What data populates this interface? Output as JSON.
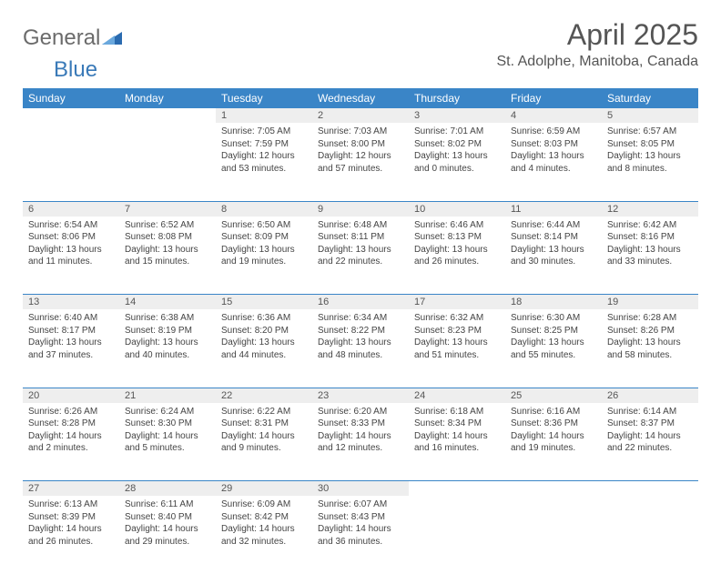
{
  "brand": {
    "part1": "General",
    "part2": "Blue"
  },
  "title": "April 2025",
  "location": "St. Adolphe, Manitoba, Canada",
  "colors": {
    "header_bg": "#3a85c7",
    "header_text": "#ffffff",
    "daynum_bg": "#eeeeee",
    "rule": "#3a85c7",
    "body_text": "#444444",
    "title_text": "#555555",
    "brand_gray": "#6b6b6b",
    "brand_blue": "#3a7ab8",
    "page_bg": "#ffffff"
  },
  "typography": {
    "title_fontsize": 32,
    "location_fontsize": 16,
    "header_fontsize": 12,
    "daynum_fontsize": 11,
    "cell_fontsize": 10,
    "logo_fontsize": 24
  },
  "weekdays": [
    "Sunday",
    "Monday",
    "Tuesday",
    "Wednesday",
    "Thursday",
    "Friday",
    "Saturday"
  ],
  "weeks": [
    [
      null,
      null,
      {
        "n": "1",
        "sr": "Sunrise: 7:05 AM",
        "ss": "Sunset: 7:59 PM",
        "dl": "Daylight: 12 hours and 53 minutes."
      },
      {
        "n": "2",
        "sr": "Sunrise: 7:03 AM",
        "ss": "Sunset: 8:00 PM",
        "dl": "Daylight: 12 hours and 57 minutes."
      },
      {
        "n": "3",
        "sr": "Sunrise: 7:01 AM",
        "ss": "Sunset: 8:02 PM",
        "dl": "Daylight: 13 hours and 0 minutes."
      },
      {
        "n": "4",
        "sr": "Sunrise: 6:59 AM",
        "ss": "Sunset: 8:03 PM",
        "dl": "Daylight: 13 hours and 4 minutes."
      },
      {
        "n": "5",
        "sr": "Sunrise: 6:57 AM",
        "ss": "Sunset: 8:05 PM",
        "dl": "Daylight: 13 hours and 8 minutes."
      }
    ],
    [
      {
        "n": "6",
        "sr": "Sunrise: 6:54 AM",
        "ss": "Sunset: 8:06 PM",
        "dl": "Daylight: 13 hours and 11 minutes."
      },
      {
        "n": "7",
        "sr": "Sunrise: 6:52 AM",
        "ss": "Sunset: 8:08 PM",
        "dl": "Daylight: 13 hours and 15 minutes."
      },
      {
        "n": "8",
        "sr": "Sunrise: 6:50 AM",
        "ss": "Sunset: 8:09 PM",
        "dl": "Daylight: 13 hours and 19 minutes."
      },
      {
        "n": "9",
        "sr": "Sunrise: 6:48 AM",
        "ss": "Sunset: 8:11 PM",
        "dl": "Daylight: 13 hours and 22 minutes."
      },
      {
        "n": "10",
        "sr": "Sunrise: 6:46 AM",
        "ss": "Sunset: 8:13 PM",
        "dl": "Daylight: 13 hours and 26 minutes."
      },
      {
        "n": "11",
        "sr": "Sunrise: 6:44 AM",
        "ss": "Sunset: 8:14 PM",
        "dl": "Daylight: 13 hours and 30 minutes."
      },
      {
        "n": "12",
        "sr": "Sunrise: 6:42 AM",
        "ss": "Sunset: 8:16 PM",
        "dl": "Daylight: 13 hours and 33 minutes."
      }
    ],
    [
      {
        "n": "13",
        "sr": "Sunrise: 6:40 AM",
        "ss": "Sunset: 8:17 PM",
        "dl": "Daylight: 13 hours and 37 minutes."
      },
      {
        "n": "14",
        "sr": "Sunrise: 6:38 AM",
        "ss": "Sunset: 8:19 PM",
        "dl": "Daylight: 13 hours and 40 minutes."
      },
      {
        "n": "15",
        "sr": "Sunrise: 6:36 AM",
        "ss": "Sunset: 8:20 PM",
        "dl": "Daylight: 13 hours and 44 minutes."
      },
      {
        "n": "16",
        "sr": "Sunrise: 6:34 AM",
        "ss": "Sunset: 8:22 PM",
        "dl": "Daylight: 13 hours and 48 minutes."
      },
      {
        "n": "17",
        "sr": "Sunrise: 6:32 AM",
        "ss": "Sunset: 8:23 PM",
        "dl": "Daylight: 13 hours and 51 minutes."
      },
      {
        "n": "18",
        "sr": "Sunrise: 6:30 AM",
        "ss": "Sunset: 8:25 PM",
        "dl": "Daylight: 13 hours and 55 minutes."
      },
      {
        "n": "19",
        "sr": "Sunrise: 6:28 AM",
        "ss": "Sunset: 8:26 PM",
        "dl": "Daylight: 13 hours and 58 minutes."
      }
    ],
    [
      {
        "n": "20",
        "sr": "Sunrise: 6:26 AM",
        "ss": "Sunset: 8:28 PM",
        "dl": "Daylight: 14 hours and 2 minutes."
      },
      {
        "n": "21",
        "sr": "Sunrise: 6:24 AM",
        "ss": "Sunset: 8:30 PM",
        "dl": "Daylight: 14 hours and 5 minutes."
      },
      {
        "n": "22",
        "sr": "Sunrise: 6:22 AM",
        "ss": "Sunset: 8:31 PM",
        "dl": "Daylight: 14 hours and 9 minutes."
      },
      {
        "n": "23",
        "sr": "Sunrise: 6:20 AM",
        "ss": "Sunset: 8:33 PM",
        "dl": "Daylight: 14 hours and 12 minutes."
      },
      {
        "n": "24",
        "sr": "Sunrise: 6:18 AM",
        "ss": "Sunset: 8:34 PM",
        "dl": "Daylight: 14 hours and 16 minutes."
      },
      {
        "n": "25",
        "sr": "Sunrise: 6:16 AM",
        "ss": "Sunset: 8:36 PM",
        "dl": "Daylight: 14 hours and 19 minutes."
      },
      {
        "n": "26",
        "sr": "Sunrise: 6:14 AM",
        "ss": "Sunset: 8:37 PM",
        "dl": "Daylight: 14 hours and 22 minutes."
      }
    ],
    [
      {
        "n": "27",
        "sr": "Sunrise: 6:13 AM",
        "ss": "Sunset: 8:39 PM",
        "dl": "Daylight: 14 hours and 26 minutes."
      },
      {
        "n": "28",
        "sr": "Sunrise: 6:11 AM",
        "ss": "Sunset: 8:40 PM",
        "dl": "Daylight: 14 hours and 29 minutes."
      },
      {
        "n": "29",
        "sr": "Sunrise: 6:09 AM",
        "ss": "Sunset: 8:42 PM",
        "dl": "Daylight: 14 hours and 32 minutes."
      },
      {
        "n": "30",
        "sr": "Sunrise: 6:07 AM",
        "ss": "Sunset: 8:43 PM",
        "dl": "Daylight: 14 hours and 36 minutes."
      },
      null,
      null,
      null
    ]
  ]
}
